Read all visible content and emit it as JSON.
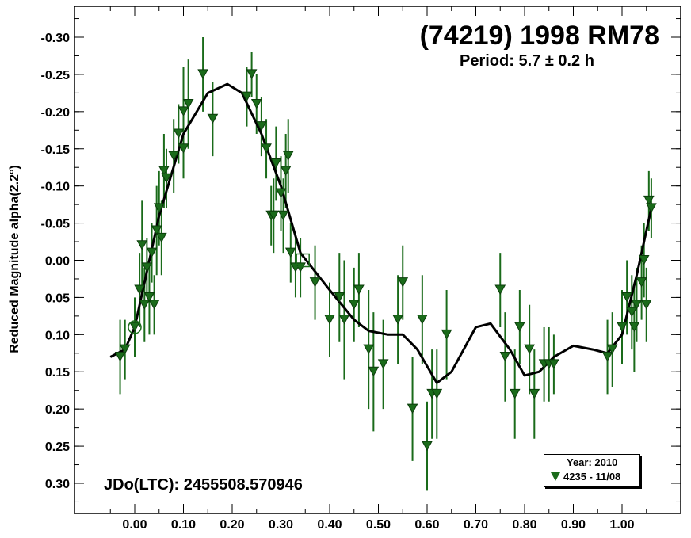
{
  "chart_data": {
    "type": "scatter",
    "title": "(74219) 1998 RM78",
    "subtitle": "Period: 5.7 ± 0.2 h",
    "annotation": "JDo(LTC): 2455508.570946",
    "ylabel": "Reduced Magnitude alpha(2.2°)",
    "xlabel": "",
    "xlim": [
      -0.05,
      1.09
    ],
    "ylim": [
      0.33,
      -0.33
    ],
    "y_inverted": true,
    "x_ticks": [
      "0.00",
      "0.10",
      "0.20",
      "0.30",
      "0.40",
      "0.50",
      "0.60",
      "0.70",
      "0.80",
      "0.90",
      "1.00"
    ],
    "y_ticks": [
      "-0.30",
      "-0.25",
      "-0.20",
      "-0.15",
      "-0.10",
      "-0.05",
      "0.00",
      "0.05",
      "0.10",
      "0.15",
      "0.20",
      "0.25",
      "0.30"
    ],
    "legend": {
      "title": "Year: 2010",
      "entries": [
        "4235 - 11/08"
      ],
      "placement": "bottom-right"
    },
    "series": [
      {
        "name": "4235 - 11/08",
        "color": "#1a6b1a",
        "marker": "down-triangle",
        "points": [
          [
            -0.03,
            0.13,
            0.05
          ],
          [
            -0.02,
            0.12,
            0.04
          ],
          [
            0.0,
            0.09,
            0.04
          ],
          [
            0.01,
            0.04,
            0.05
          ],
          [
            0.015,
            -0.02,
            0.06
          ],
          [
            0.02,
            0.06,
            0.05
          ],
          [
            0.025,
            0.01,
            0.04
          ],
          [
            0.03,
            0.05,
            0.05
          ],
          [
            0.035,
            -0.01,
            0.04
          ],
          [
            0.04,
            0.06,
            0.04
          ],
          [
            0.045,
            -0.04,
            0.06
          ],
          [
            0.05,
            -0.07,
            0.05
          ],
          [
            0.055,
            -0.03,
            0.05
          ],
          [
            0.06,
            -0.12,
            0.05
          ],
          [
            0.065,
            -0.11,
            0.04
          ],
          [
            0.08,
            -0.14,
            0.05
          ],
          [
            0.09,
            -0.17,
            0.04
          ],
          [
            0.1,
            -0.15,
            0.04
          ],
          [
            0.1,
            -0.2,
            0.06
          ],
          [
            0.11,
            -0.21,
            0.06
          ],
          [
            0.14,
            -0.25,
            0.05
          ],
          [
            0.16,
            -0.19,
            0.05
          ],
          [
            0.23,
            -0.22,
            0.04
          ],
          [
            0.24,
            -0.25,
            0.03
          ],
          [
            0.25,
            -0.21,
            0.04
          ],
          [
            0.26,
            -0.18,
            0.04
          ],
          [
            0.27,
            -0.15,
            0.04
          ],
          [
            0.28,
            -0.06,
            0.04
          ],
          [
            0.285,
            -0.06,
            0.05
          ],
          [
            0.29,
            -0.13,
            0.05
          ],
          [
            0.3,
            -0.09,
            0.05
          ],
          [
            0.305,
            -0.06,
            0.05
          ],
          [
            0.31,
            -0.12,
            0.05
          ],
          [
            0.315,
            -0.14,
            0.05
          ],
          [
            0.32,
            -0.01,
            0.04
          ],
          [
            0.33,
            0.01,
            0.04
          ],
          [
            0.34,
            0.01,
            0.04
          ],
          [
            0.37,
            0.03,
            0.05
          ],
          [
            0.4,
            0.08,
            0.05
          ],
          [
            0.42,
            0.05,
            0.06
          ],
          [
            0.43,
            0.08,
            0.08
          ],
          [
            0.45,
            0.06,
            0.05
          ],
          [
            0.46,
            0.04,
            0.05
          ],
          [
            0.48,
            0.12,
            0.08
          ],
          [
            0.49,
            0.15,
            0.08
          ],
          [
            0.51,
            0.14,
            0.06
          ],
          [
            0.54,
            0.08,
            0.06
          ],
          [
            0.55,
            0.03,
            0.05
          ],
          [
            0.57,
            0.2,
            0.07
          ],
          [
            0.59,
            0.08,
            0.06
          ],
          [
            0.6,
            0.25,
            0.06
          ],
          [
            0.61,
            0.18,
            0.06
          ],
          [
            0.62,
            0.18,
            0.06
          ],
          [
            0.64,
            0.1,
            0.06
          ],
          [
            0.75,
            0.04,
            0.05
          ],
          [
            0.76,
            0.13,
            0.06
          ],
          [
            0.78,
            0.18,
            0.06
          ],
          [
            0.79,
            0.09,
            0.05
          ],
          [
            0.81,
            0.12,
            0.06
          ],
          [
            0.82,
            0.18,
            0.06
          ],
          [
            0.84,
            0.14,
            0.05
          ],
          [
            0.85,
            0.14,
            0.05
          ],
          [
            0.86,
            0.14,
            0.04
          ],
          [
            0.97,
            0.13,
            0.05
          ],
          [
            0.98,
            0.12,
            0.05
          ],
          [
            1.0,
            0.09,
            0.05
          ],
          [
            1.01,
            0.05,
            0.05
          ],
          [
            1.02,
            0.07,
            0.05
          ],
          [
            1.025,
            0.09,
            0.06
          ],
          [
            1.03,
            0.06,
            0.05
          ],
          [
            1.04,
            0.03,
            0.05
          ],
          [
            1.045,
            0.0,
            0.05
          ],
          [
            1.05,
            0.06,
            0.05
          ],
          [
            1.055,
            -0.08,
            0.04
          ],
          [
            1.06,
            -0.07,
            0.04
          ]
        ]
      },
      {
        "name": "",
        "color": "#000000",
        "marker": "line",
        "points": [
          [
            -0.05,
            0.13
          ],
          [
            -0.02,
            0.12
          ],
          [
            0.0,
            0.09
          ],
          [
            0.05,
            -0.06
          ],
          [
            0.1,
            -0.17
          ],
          [
            0.15,
            -0.225
          ],
          [
            0.19,
            -0.237
          ],
          [
            0.22,
            -0.225
          ],
          [
            0.26,
            -0.17
          ],
          [
            0.3,
            -0.1
          ],
          [
            0.34,
            -0.01
          ],
          [
            0.4,
            0.04
          ],
          [
            0.45,
            0.08
          ],
          [
            0.48,
            0.095
          ],
          [
            0.52,
            0.1
          ],
          [
            0.55,
            0.1
          ],
          [
            0.58,
            0.12
          ],
          [
            0.62,
            0.165
          ],
          [
            0.65,
            0.15
          ],
          [
            0.7,
            0.09
          ],
          [
            0.73,
            0.085
          ],
          [
            0.77,
            0.12
          ],
          [
            0.8,
            0.155
          ],
          [
            0.83,
            0.15
          ],
          [
            0.86,
            0.13
          ],
          [
            0.9,
            0.115
          ],
          [
            0.94,
            0.12
          ],
          [
            0.97,
            0.125
          ],
          [
            1.0,
            0.1
          ],
          [
            1.03,
            0.02
          ],
          [
            1.06,
            -0.07
          ]
        ]
      }
    ],
    "special_markers": [
      {
        "shape": "circle",
        "x": 0.0,
        "y": 0.09
      },
      {
        "shape": "square",
        "x": 0.345,
        "y": 0.0
      }
    ]
  }
}
